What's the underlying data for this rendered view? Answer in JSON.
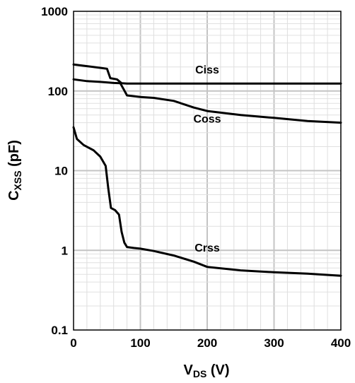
{
  "chart_data": {
    "type": "line",
    "title": "",
    "xlabel": {
      "main": "V",
      "sub": "DS",
      "unit": " (V)"
    },
    "ylabel": {
      "main": "C",
      "sub": "XSS",
      "unit": " (pF)"
    },
    "x_scale": "linear",
    "y_scale": "log",
    "xlim": [
      0,
      400
    ],
    "ylim": [
      0.1,
      1000
    ],
    "x_ticks": [
      {
        "value": 0,
        "label": "0"
      },
      {
        "value": 100,
        "label": "100"
      },
      {
        "value": 200,
        "label": "200"
      },
      {
        "value": 300,
        "label": "300"
      },
      {
        "value": 400,
        "label": "400"
      }
    ],
    "y_ticks": [
      {
        "value": 0.1,
        "label": "0.1"
      },
      {
        "value": 1,
        "label": "1"
      },
      {
        "value": 10,
        "label": "10"
      },
      {
        "value": 100,
        "label": "100"
      },
      {
        "value": 1000,
        "label": "1000"
      }
    ],
    "grid": true,
    "series": [
      {
        "name": "Ciss",
        "x": [
          0,
          20,
          40,
          50,
          55,
          65,
          72,
          80,
          100,
          200,
          300,
          400
        ],
        "y": [
          215,
          205,
          195,
          190,
          145,
          140,
          125,
          124,
          124,
          124,
          124,
          124
        ]
      },
      {
        "name": "Coss",
        "x": [
          0,
          20,
          40,
          60,
          70,
          75,
          80,
          100,
          120,
          150,
          180,
          200,
          250,
          300,
          350,
          400
        ],
        "y": [
          140,
          133,
          130,
          126,
          125,
          105,
          88,
          84,
          82,
          75,
          62,
          56,
          50,
          46,
          42,
          40
        ]
      },
      {
        "name": "Crss",
        "x": [
          0,
          5,
          15,
          30,
          40,
          48,
          52,
          56,
          62,
          68,
          72,
          76,
          80,
          90,
          100,
          120,
          150,
          180,
          200,
          250,
          300,
          350,
          400
        ],
        "y": [
          35,
          25,
          21,
          18,
          15,
          11.5,
          6,
          3.4,
          3.2,
          2.8,
          1.7,
          1.25,
          1.1,
          1.07,
          1.05,
          0.98,
          0.86,
          0.72,
          0.62,
          0.56,
          0.53,
          0.51,
          0.48
        ]
      }
    ],
    "curve_labels": [
      {
        "text": "Ciss",
        "x": 200,
        "y": 165
      },
      {
        "text": "Coss",
        "x": 200,
        "y": 40
      },
      {
        "text": "Crss",
        "x": 200,
        "y": 0.96
      }
    ]
  }
}
